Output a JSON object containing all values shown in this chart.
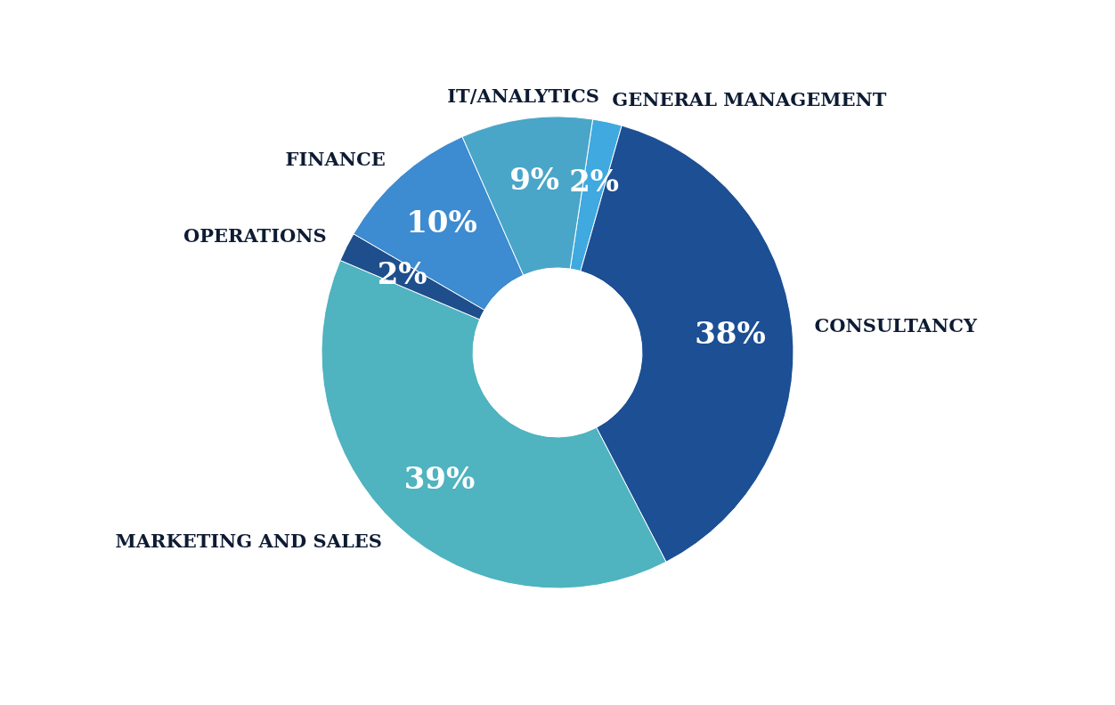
{
  "chart_data": {
    "type": "donut",
    "categories": [
      "GENERAL MANAGEMENT",
      "CONSULTANCY",
      "MARKETING AND SALES",
      "OPERATIONS",
      "FINANCE",
      "IT/ANALYTICS"
    ],
    "values": [
      2,
      38,
      39,
      2,
      10,
      9
    ],
    "value_labels": [
      "2%",
      "38%",
      "39%",
      "2%",
      "10%",
      "9%"
    ],
    "colors": [
      "#3fa9e0",
      "#1c4f94",
      "#4fb3c0",
      "#1e4f8c",
      "#3d8bd0",
      "#4aa6c8"
    ]
  }
}
